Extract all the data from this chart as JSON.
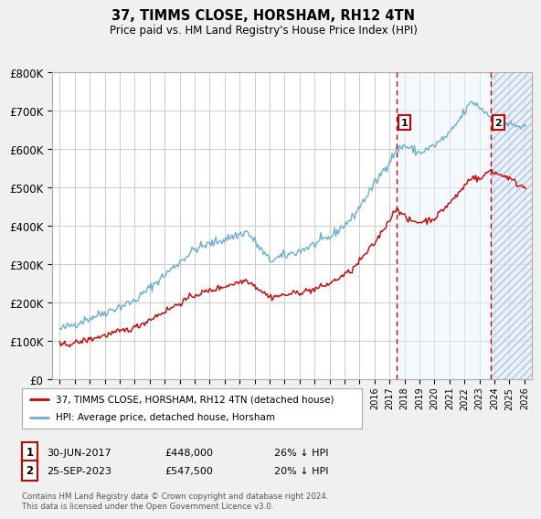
{
  "title": "37, TIMMS CLOSE, HORSHAM, RH12 4TN",
  "subtitle": "Price paid vs. HM Land Registry's House Price Index (HPI)",
  "ylim": [
    0,
    800000
  ],
  "yticks": [
    0,
    100000,
    200000,
    300000,
    400000,
    500000,
    600000,
    700000,
    800000
  ],
  "ytick_labels": [
    "£0",
    "£100K",
    "£200K",
    "£300K",
    "£400K",
    "£500K",
    "£600K",
    "£700K",
    "£800K"
  ],
  "hpi_color": "#6aaed6",
  "price_color": "#cc0000",
  "sale1_date": 2017.5,
  "sale1_price": 448000,
  "sale1_label": "30-JUN-2017",
  "sale1_pct": "26% ↓ HPI",
  "sale2_date": 2023.75,
  "sale2_price": 547500,
  "sale2_label": "25-SEP-2023",
  "sale2_pct": "20% ↓ HPI",
  "legend_line1": "37, TIMMS CLOSE, HORSHAM, RH12 4TN (detached house)",
  "legend_line2": "HPI: Average price, detached house, Horsham",
  "footer": "Contains HM Land Registry data © Crown copyright and database right 2024.\nThis data is licensed under the Open Government Licence v3.0.",
  "background_color": "#f0f0f0",
  "plot_bg_color": "#ffffff",
  "grid_color": "#cccccc",
  "xmin": 1994.5,
  "xmax": 2026.5
}
